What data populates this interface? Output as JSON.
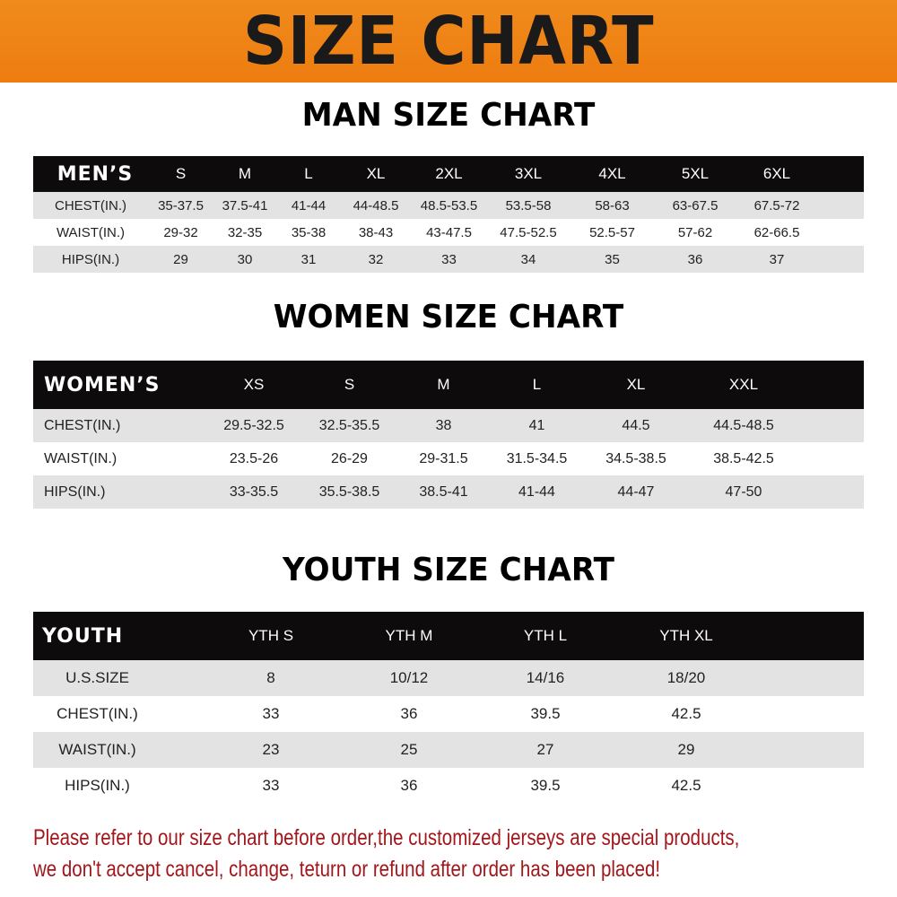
{
  "banner_title": "SIZE CHART",
  "men": {
    "title": "MAN SIZE CHART",
    "header_label": "MEN’S",
    "sizes": [
      "S",
      "M",
      "L",
      "XL",
      "2XL",
      "3XL",
      "4XL",
      "5XL",
      "6XL"
    ],
    "rows": [
      {
        "label": "CHEST(IN.)",
        "values": [
          "35-37.5",
          "37.5-41",
          "41-44",
          "44-48.5",
          "48.5-53.5",
          "53.5-58",
          "58-63",
          "63-67.5",
          "67.5-72"
        ]
      },
      {
        "label": "WAIST(IN.)",
        "values": [
          "29-32",
          "32-35",
          "35-38",
          "38-43",
          "43-47.5",
          "47.5-52.5",
          "52.5-57",
          "57-62",
          "62-66.5"
        ]
      },
      {
        "label": "HIPS(IN.)",
        "values": [
          "29",
          "30",
          "31",
          "32",
          "33",
          "34",
          "35",
          "36",
          "37"
        ]
      }
    ]
  },
  "women": {
    "title": "WOMEN SIZE CHART",
    "header_label": "WOMEN’S",
    "sizes": [
      "XS",
      "S",
      "M",
      "L",
      "XL",
      "XXL"
    ],
    "rows": [
      {
        "label": "CHEST(IN.)",
        "values": [
          "29.5-32.5",
          "32.5-35.5",
          "38",
          "41",
          "44.5",
          "44.5-48.5"
        ]
      },
      {
        "label": "WAIST(IN.)",
        "values": [
          "23.5-26",
          "26-29",
          "29-31.5",
          "31.5-34.5",
          "34.5-38.5",
          "38.5-42.5"
        ]
      },
      {
        "label": "HIPS(IN.)",
        "values": [
          "33-35.5",
          "35.5-38.5",
          "38.5-41",
          "41-44",
          "44-47",
          "47-50"
        ]
      }
    ]
  },
  "youth": {
    "title": "YOUTH SIZE CHART",
    "header_label": "YOUTH",
    "sizes": [
      "YTH S",
      "YTH M",
      "YTH L",
      "YTH XL"
    ],
    "rows": [
      {
        "label": "U.S.SIZE",
        "values": [
          "8",
          "10/12",
          "14/16",
          "18/20"
        ]
      },
      {
        "label": "CHEST(IN.)",
        "values": [
          "33",
          "36",
          "39.5",
          "42.5"
        ]
      },
      {
        "label": "WAIST(IN.)",
        "values": [
          "23",
          "25",
          "27",
          "29"
        ]
      },
      {
        "label": "HIPS(IN.)",
        "values": [
          "33",
          "36",
          "39.5",
          "42.5"
        ]
      }
    ]
  },
  "notice": {
    "line1": "Please refer to our size chart before order,the customized jerseys are special products,",
    "line2": "we don't accept cancel, change, teturn or refund after order has been placed!"
  },
  "colors": {
    "banner": "#f08a1c",
    "header_row": "#0d0b0b",
    "shade_row": "#e3e3e3",
    "notice_text": "#a3161b"
  }
}
